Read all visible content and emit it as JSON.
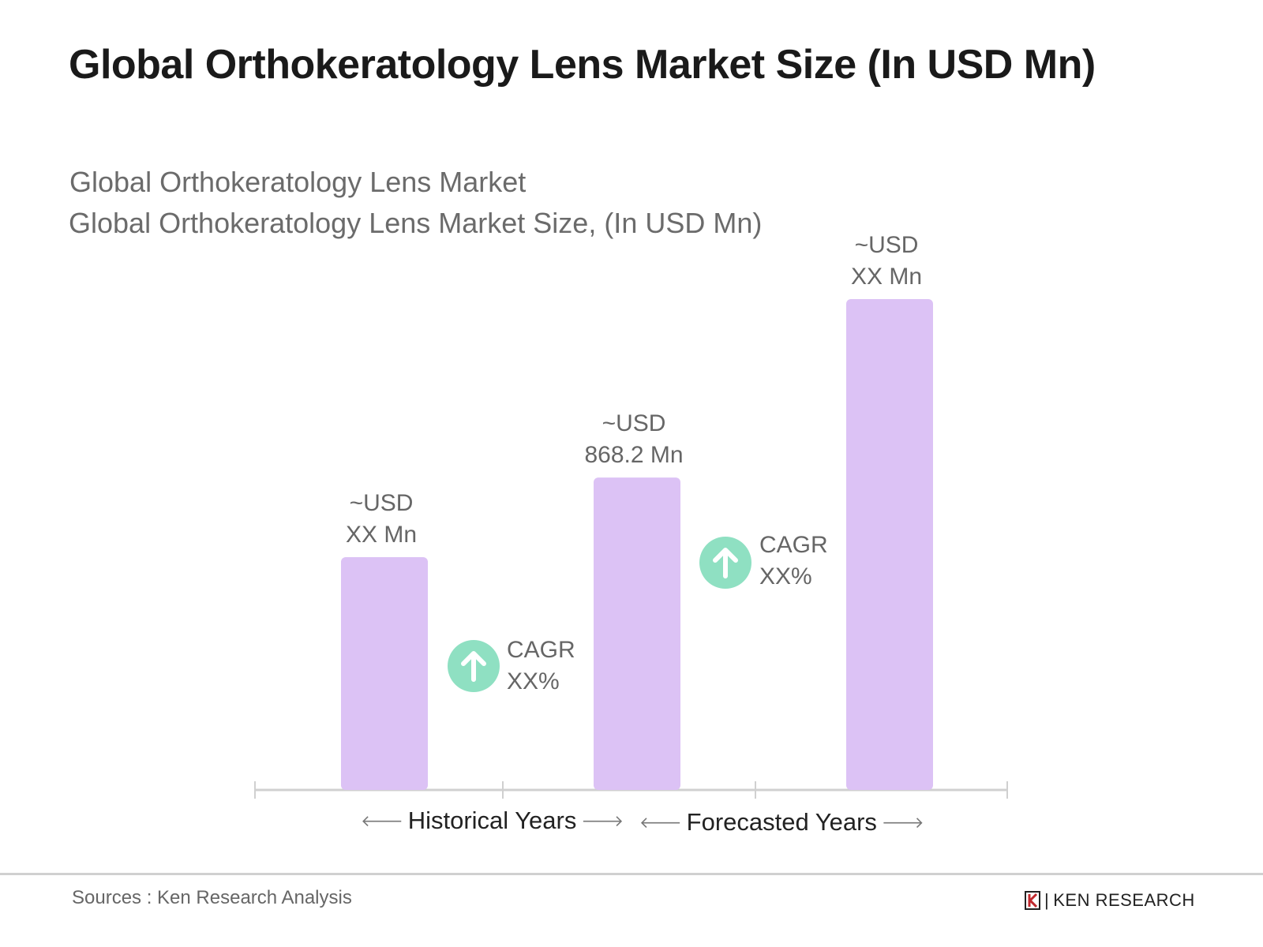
{
  "title": "Global Orthokeratology Lens Market Size (In USD Mn)",
  "subtitle_1": "Global Orthokeratology Lens Market",
  "subtitle_2": "Global Orthokeratology Lens Market Size, (In USD Mn)",
  "chart_data": {
    "type": "bar",
    "categories": [
      "",
      "",
      ""
    ],
    "values": [
      647,
      868.2,
      1364
    ],
    "data_labels": [
      {
        "line1": "~USD",
        "line2": "XX Mn"
      },
      {
        "line1": "~USD",
        "line2": "868.2 Mn"
      },
      {
        "line1": "~USD",
        "line2": "XX Mn"
      }
    ],
    "bar_color": "#dcc2f5",
    "ylim": [
      0,
      1364
    ],
    "grid": false,
    "annotations": [
      {
        "line1": "CAGR",
        "line2": "XX%",
        "icon": "arrow-up-circle-icon"
      },
      {
        "line1": "CAGR",
        "line2": "XX%",
        "icon": "arrow-up-circle-icon"
      }
    ],
    "periods": [
      {
        "label": "Historical Years",
        "left_arrow": "🡐",
        "right_arrow": "🡒"
      },
      {
        "label": "Forecasted Years",
        "left_arrow": "🡐",
        "right_arrow": "🡒"
      }
    ],
    "accent_color": "#8fe0c2"
  },
  "footer": {
    "source": "Sources : Ken Research Analysis",
    "logo": "KEN RESEARCH"
  }
}
